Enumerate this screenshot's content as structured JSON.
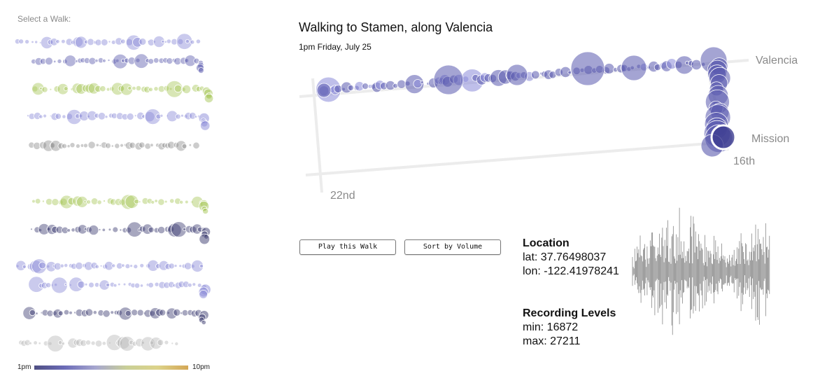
{
  "sidebar": {
    "label": "Select a Walk:"
  },
  "legend": {
    "start": "1pm",
    "end": "10pm"
  },
  "walk": {
    "title": "Walking to Stamen, along Valencia",
    "time": "1pm Friday, July 25",
    "streets": [
      "Valencia",
      "Mission",
      "16th",
      "22nd"
    ]
  },
  "buttons": {
    "play": "Play this Walk",
    "sort": "Sort by Volume"
  },
  "location": {
    "heading": "Location",
    "lat": "lat: 37.76498037",
    "lon": "lon: -122.41978241"
  },
  "levels": {
    "heading": "Recording Levels",
    "min": "min: 16872",
    "max": "max: 27211"
  },
  "colors": {
    "blue": "#5a5aae",
    "lightblue": "#8a8ad8",
    "dark": "#3c3c70",
    "green": "#a8c85a",
    "darkgreen": "#6f8f2c",
    "gray": "#8e8e8e",
    "lightgray": "#b8b8b8"
  },
  "thumbnails": [
    {
      "color": "lightblue",
      "end_curl": false
    },
    {
      "color": "blue",
      "end_curl": true
    },
    {
      "color": "green",
      "end_curl": true
    },
    {
      "color": "lightblue",
      "end_curl": true
    },
    {
      "color": "gray",
      "end_curl": false
    },
    {
      "color": "green",
      "end_curl": true
    },
    {
      "color": "dark",
      "end_curl": true
    },
    {
      "color": "lightblue",
      "end_curl": false
    },
    {
      "color": "lightblue",
      "end_curl": true
    },
    {
      "color": "dark",
      "end_curl": true
    },
    {
      "color": "lightgray",
      "end_curl": false
    }
  ]
}
